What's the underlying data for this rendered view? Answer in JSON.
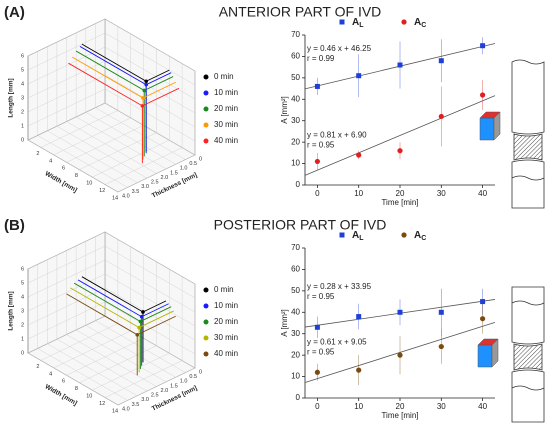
{
  "chart_data": [
    {
      "type": "line3d",
      "panel_label": "(A)",
      "title": "ANTERIOR PART OF IVD",
      "xlabel": "Width [mm]",
      "ylabel": "Thickness [mm]",
      "zlabel": "Length [mm]",
      "xlim": [
        0,
        14
      ],
      "xticks": [
        2,
        4,
        6,
        8,
        10,
        12,
        14
      ],
      "ylim": [
        0,
        4
      ],
      "yticks": [
        0,
        0.5,
        {
          "value": 1,
          "label": "1.0"
        },
        1.5,
        {
          "value": 2,
          "label": "2.0"
        },
        2.5,
        {
          "value": 3,
          "label": "3.0"
        },
        3.5,
        {
          "value": 4,
          "label": "4.0"
        }
      ],
      "zlim": [
        0,
        6
      ],
      "zticks": [
        0,
        1,
        2,
        3,
        4,
        5,
        6
      ],
      "series": [
        {
          "name": "0 min",
          "color": "#000000",
          "width": 10,
          "thickness": 1.2,
          "length": 5.0
        },
        {
          "name": "10 min",
          "color": "#1a1aff",
          "width": 10.3,
          "thickness": 1.3,
          "length": 4.9
        },
        {
          "name": "20 min",
          "color": "#1a8a1a",
          "width": 10.6,
          "thickness": 1.5,
          "length": 4.7
        },
        {
          "name": "30 min",
          "color": "#ff9900",
          "width": 11,
          "thickness": 1.7,
          "length": 4.4
        },
        {
          "name": "40 min",
          "color": "#ff2020",
          "width": 11.5,
          "thickness": 1.9,
          "length": 4.1
        }
      ]
    },
    {
      "type": "scatter",
      "xlabel": "Time [min]",
      "ylabel": "A [mm²]",
      "x": [
        0,
        10,
        20,
        30,
        40
      ],
      "xlim": [
        -3,
        43
      ],
      "xticks": [
        0,
        10,
        20,
        30,
        40
      ],
      "ylim": [
        0,
        70
      ],
      "yticks": [
        0,
        10,
        20,
        30,
        40,
        50,
        60,
        70
      ],
      "series": [
        {
          "name": "A",
          "subscript": "L",
          "color": "#1f3fd6",
          "marker": "square",
          "values": [
            46,
            51,
            56,
            58,
            65
          ],
          "errors": [
            4,
            10,
            11,
            10,
            4
          ],
          "fit": {
            "slope": 0.46,
            "intercept": 46.25,
            "label": "y = 0.46 x + 46.25",
            "r_label": "r = 0.99"
          }
        },
        {
          "name": "A",
          "subscript": "C",
          "color": "#e02020",
          "marker": "circle",
          "values": [
            11,
            14,
            16,
            32,
            42
          ],
          "errors": [
            4,
            2,
            4,
            14,
            7
          ],
          "fit": {
            "slope": 0.81,
            "intercept": 6.9,
            "label": "y = 0.81 x + 6.90",
            "r_label": "r = 0.95"
          }
        }
      ]
    },
    {
      "type": "line3d",
      "panel_label": "(B)",
      "title": "POSTERIOR PART OF IVD",
      "xlabel": "Width [mm]",
      "ylabel": "Thickness [mm]",
      "zlabel": "Length [mm]",
      "xlim": [
        0,
        14
      ],
      "xticks": [
        2,
        4,
        6,
        8,
        10,
        12,
        14
      ],
      "ylim": [
        0,
        4
      ],
      "yticks": [
        0,
        0.5,
        {
          "value": 1,
          "label": "1.0"
        },
        1.5,
        {
          "value": 2,
          "label": "2.0"
        },
        2.5,
        {
          "value": 3,
          "label": "3.0"
        },
        3.5,
        {
          "value": 4,
          "label": "4.0"
        }
      ],
      "zlim": [
        0,
        6
      ],
      "zticks": [
        0,
        1,
        2,
        3,
        4,
        5,
        6
      ],
      "series": [
        {
          "name": "0 min",
          "color": "#000000",
          "width": 9.5,
          "thickness": 1.2,
          "length": 3.6
        },
        {
          "name": "10 min",
          "color": "#1a1aff",
          "width": 9.9,
          "thickness": 1.4,
          "length": 3.5
        },
        {
          "name": "20 min",
          "color": "#1a8a1a",
          "width": 10.3,
          "thickness": 1.6,
          "length": 3.4
        },
        {
          "name": "30 min",
          "color": "#b5b500",
          "width": 10.7,
          "thickness": 1.8,
          "length": 3.2
        },
        {
          "name": "40 min",
          "color": "#7a4a10",
          "width": 11,
          "thickness": 2.0,
          "length": 2.9
        }
      ]
    },
    {
      "type": "scatter",
      "xlabel": "Time [min]",
      "ylabel": "A [mm²]",
      "x": [
        0,
        10,
        20,
        30,
        40
      ],
      "xlim": [
        -3,
        43
      ],
      "xticks": [
        0,
        10,
        20,
        30,
        40
      ],
      "ylim": [
        0,
        70
      ],
      "yticks": [
        0,
        10,
        20,
        30,
        40,
        50,
        60,
        70
      ],
      "series": [
        {
          "name": "A",
          "subscript": "L",
          "color": "#1f3fd6",
          "marker": "square",
          "values": [
            33,
            38,
            40,
            40,
            45
          ],
          "errors": [
            5,
            6,
            6,
            11,
            6
          ],
          "fit": {
            "slope": 0.28,
            "intercept": 33.95,
            "label": "y = 0.28 x + 33.95",
            "r_label": "r = 0.95"
          }
        },
        {
          "name": "A",
          "subscript": "C",
          "color": "#7a4a10",
          "marker": "circle",
          "values": [
            12,
            13,
            20,
            24,
            37
          ],
          "errors": [
            4,
            7,
            9,
            8,
            7
          ],
          "fit": {
            "slope": 0.61,
            "intercept": 9.05,
            "label": "y = 0.61 x + 9.05",
            "r_label": "r = 0.95"
          }
        }
      ]
    }
  ]
}
